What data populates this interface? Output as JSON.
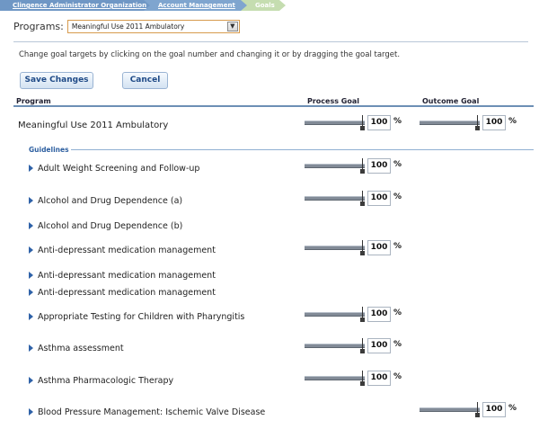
{
  "breadcrumb": [
    {
      "label": "Clingence Administrator Organization"
    },
    {
      "label": "Account Management"
    },
    {
      "label": "Goals"
    }
  ],
  "programs": {
    "label": "Programs:",
    "selected": "Meaningful Use 2011 Ambulatory"
  },
  "instructions": "Change goal targets by clicking on the goal number and changing it or by dragging the goal target.",
  "buttons": {
    "save": "Save Changes",
    "cancel": "Cancel"
  },
  "table_header": {
    "program": "Program",
    "process_goal": "Process Goal",
    "outcome_goal": "Outcome Goal"
  },
  "program_row": {
    "name": "Meaningful Use 2011 Ambulatory",
    "process_goal": "100",
    "outcome_goal": "100"
  },
  "guidelines_label": "Guidelines",
  "percent_sign": "%",
  "guidelines": [
    {
      "name": "Adult Weight Screening and Follow-up",
      "process_goal": "100",
      "outcome_goal": null
    },
    {
      "name": "Alcohol and Drug Dependence (a)",
      "process_goal": "100",
      "outcome_goal": null
    },
    {
      "name": "Alcohol and Drug Dependence (b)",
      "process_goal": null,
      "outcome_goal": null
    },
    {
      "name": "Anti-depressant medication management",
      "process_goal": "100",
      "outcome_goal": null
    },
    {
      "name": "Anti-depressant medication management",
      "process_goal": null,
      "outcome_goal": null
    },
    {
      "name": "Anti-depressant medication management",
      "process_goal": null,
      "outcome_goal": null
    },
    {
      "name": "Appropriate Testing for Children with Pharyngitis",
      "process_goal": "100",
      "outcome_goal": null
    },
    {
      "name": "Asthma assessment",
      "process_goal": "100",
      "outcome_goal": null
    },
    {
      "name": "Asthma Pharmacologic Therapy",
      "process_goal": "100",
      "outcome_goal": null
    },
    {
      "name": "Blood Pressure Management: Ischemic Valve Disease",
      "process_goal": null,
      "outcome_goal": "100"
    }
  ]
}
